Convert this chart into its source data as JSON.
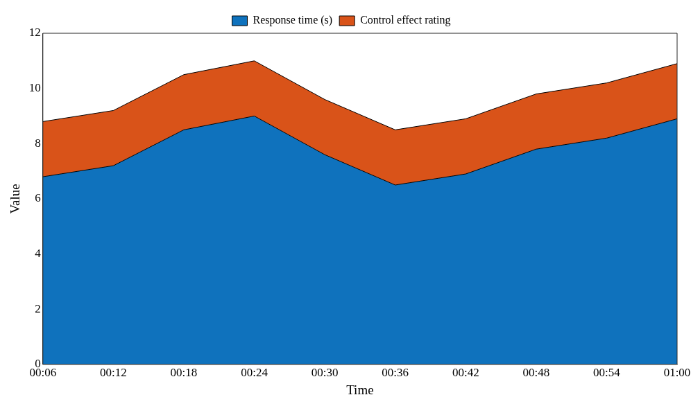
{
  "chart_data": {
    "type": "area",
    "stacked": true,
    "xlabel": "Time",
    "ylabel": "Value",
    "categories": [
      "00:06",
      "00:12",
      "00:18",
      "00:24",
      "00:30",
      "00:36",
      "00:42",
      "00:48",
      "00:54",
      "01:00"
    ],
    "series": [
      {
        "name": "Response time (s)",
        "color": "#0f72bd",
        "values": [
          6.8,
          7.2,
          8.5,
          9.0,
          7.6,
          6.5,
          6.9,
          7.8,
          8.2,
          8.9
        ]
      },
      {
        "name": "Control effect rating",
        "color": "#d95319",
        "values": [
          2.0,
          2.0,
          2.0,
          2.0,
          2.0,
          2.0,
          2.0,
          2.0,
          2.0,
          2.0
        ]
      }
    ],
    "ylim": [
      0,
      12
    ],
    "yticks": [
      0,
      2,
      4,
      6,
      8,
      10,
      12
    ],
    "grid": false,
    "legend": "top"
  }
}
